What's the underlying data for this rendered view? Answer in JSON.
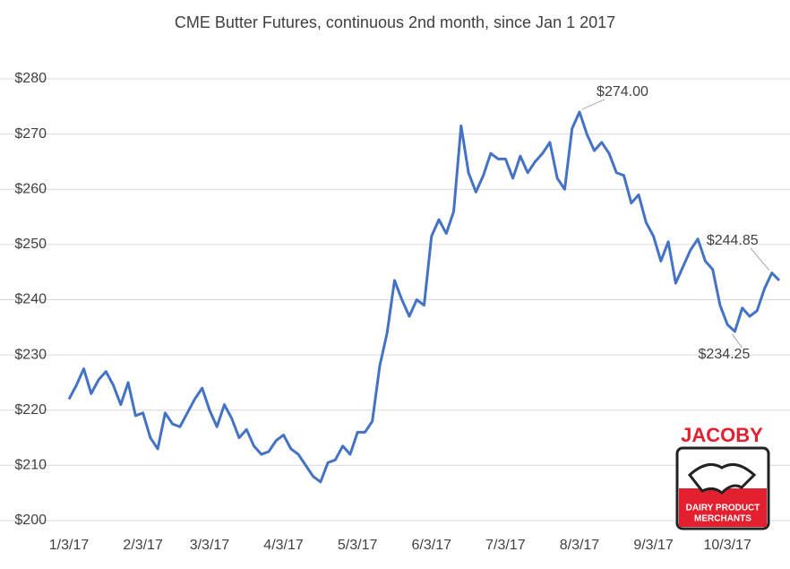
{
  "chart_data": {
    "type": "line",
    "title": "CME Butter Futures, continuous 2nd month, since Jan 1 2017",
    "categories": [
      "1/3/17",
      null,
      null,
      null,
      null,
      null,
      null,
      null,
      null,
      null,
      "2/3/17",
      null,
      null,
      null,
      null,
      null,
      null,
      null,
      null,
      "3/3/17",
      null,
      null,
      null,
      null,
      null,
      null,
      null,
      null,
      null,
      "4/3/17",
      null,
      null,
      null,
      null,
      null,
      null,
      null,
      null,
      null,
      "5/3/17",
      null,
      null,
      null,
      null,
      null,
      null,
      null,
      null,
      null,
      "6/3/17",
      null,
      null,
      null,
      null,
      null,
      null,
      null,
      null,
      null,
      "7/3/17",
      null,
      null,
      null,
      null,
      null,
      null,
      null,
      null,
      null,
      "8/3/17",
      null,
      null,
      null,
      null,
      null,
      null,
      null,
      null,
      null,
      "9/3/17",
      null,
      null,
      null,
      null,
      null,
      null,
      null,
      null,
      null,
      "10/3/17",
      null,
      null,
      null,
      null,
      null,
      null,
      null
    ],
    "series": [
      {
        "name": "CME Butter Futures",
        "color": "#4472c4",
        "values": [
          222,
          224.5,
          227.5,
          223,
          225.5,
          227,
          224.5,
          221,
          225,
          219,
          219.5,
          215,
          213,
          219.5,
          217.5,
          217,
          219.5,
          222,
          224,
          220,
          217,
          221,
          218.5,
          215,
          216.5,
          213.5,
          212,
          212.5,
          214.5,
          215.5,
          213,
          212,
          210,
          208,
          207,
          210.5,
          211,
          213.5,
          212,
          216,
          216,
          218,
          228,
          234,
          243.5,
          240,
          237,
          240,
          239,
          251.5,
          254.5,
          252,
          256,
          271.5,
          263,
          259.5,
          262.5,
          266.5,
          265.5,
          265.5,
          262,
          266,
          263,
          265,
          266.5,
          268.5,
          262,
          260,
          271,
          274,
          270,
          267,
          268.5,
          266.5,
          263,
          262.5,
          257.5,
          259,
          254,
          251.5,
          247,
          250.5,
          243,
          246,
          249,
          251,
          247,
          245.5,
          239,
          235.5,
          234.25,
          238.5,
          237,
          238,
          242,
          244.85,
          243.5
        ],
        "value_labels": [
          null,
          null,
          null,
          null,
          null,
          null,
          null,
          null,
          null,
          null,
          null,
          null,
          null,
          null,
          null,
          null,
          null,
          null,
          null,
          null,
          null,
          null,
          null,
          null,
          null,
          null,
          null,
          null,
          null,
          null,
          null,
          null,
          null,
          null,
          null,
          null,
          null,
          null,
          null,
          null,
          null,
          null,
          null,
          null,
          null,
          null,
          null,
          null,
          null,
          null,
          null,
          null,
          null,
          null,
          null,
          null,
          null,
          null,
          null,
          null,
          null,
          null,
          null,
          null,
          null,
          null,
          null,
          null,
          null,
          "$274.00",
          null,
          null,
          null,
          null,
          null,
          null,
          null,
          null,
          null,
          null,
          null,
          null,
          null,
          null,
          null,
          null,
          null,
          null,
          null,
          null,
          "$234.25",
          null,
          null,
          null,
          null,
          "$244.85",
          null
        ]
      }
    ],
    "ylim": [
      200,
      280
    ],
    "yticks": [
      {
        "value": 200,
        "label": "$200"
      },
      {
        "value": 210,
        "label": "$210"
      },
      {
        "value": 220,
        "label": "$220"
      },
      {
        "value": 230,
        "label": "$230"
      },
      {
        "value": 240,
        "label": "$240"
      },
      {
        "value": 250,
        "label": "$250"
      },
      {
        "value": 260,
        "label": "$260"
      },
      {
        "value": 270,
        "label": "$270"
      },
      {
        "value": 280,
        "label": "$280"
      }
    ],
    "grid": true
  },
  "logo": {
    "name": "JACOBY",
    "tagline_1": "DAIRY PRODUCT",
    "tagline_2": "MERCHANTS"
  }
}
